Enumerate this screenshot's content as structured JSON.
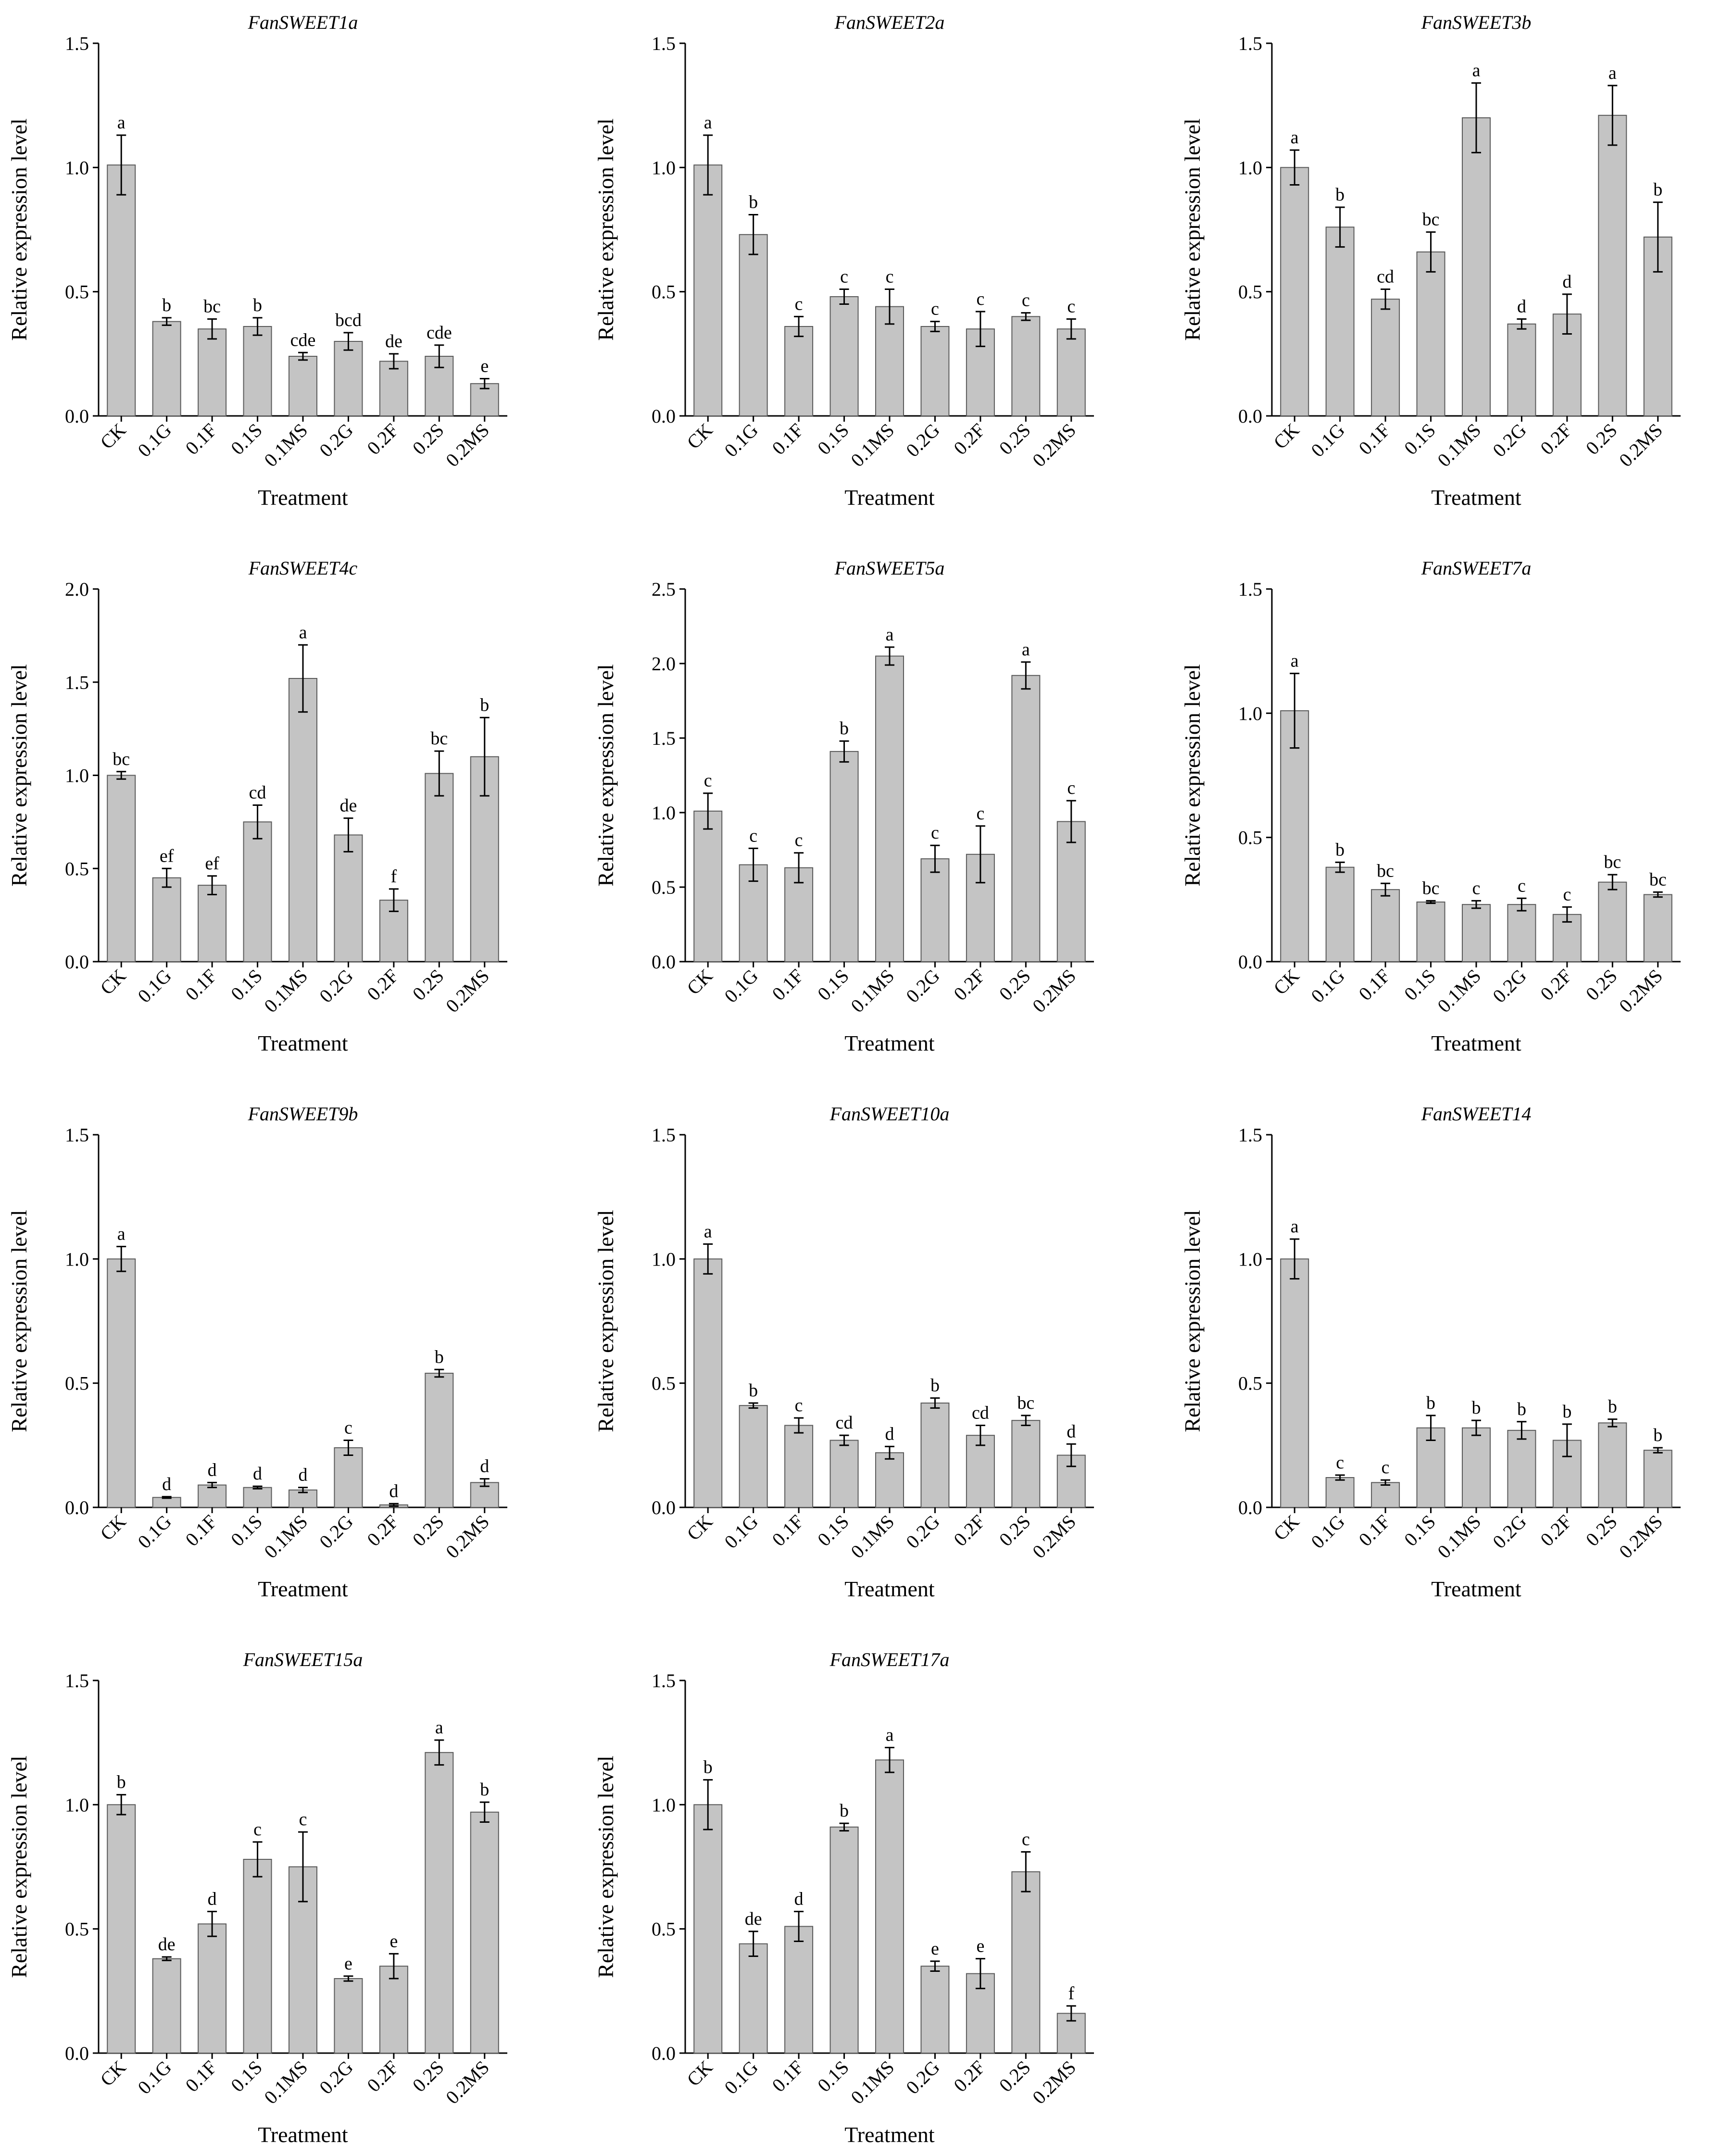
{
  "figure": {
    "ylabel": "Relative expression level",
    "xlabel": "Treatment",
    "categories": [
      "CK",
      "0.1G",
      "0.1F",
      "0.1S",
      "0.1MS",
      "0.2G",
      "0.2F",
      "0.2S",
      "0.2MS"
    ]
  },
  "chart_data": [
    {
      "type": "bar",
      "title": "FanSWEET1a",
      "ylim": [
        0,
        1.5
      ],
      "yticks": [
        "0.0",
        "0.5",
        "1.0",
        "1.5"
      ],
      "values": [
        1.01,
        0.38,
        0.35,
        0.36,
        0.24,
        0.3,
        0.22,
        0.24,
        0.13
      ],
      "errors": [
        0.12,
        0.015,
        0.04,
        0.035,
        0.015,
        0.035,
        0.03,
        0.045,
        0.02
      ],
      "labels": [
        "a",
        "b",
        "bc",
        "b",
        "cde",
        "bcd",
        "de",
        "cde",
        "e"
      ]
    },
    {
      "type": "bar",
      "title": "FanSWEET2a",
      "ylim": [
        0,
        1.5
      ],
      "yticks": [
        "0.0",
        "0.5",
        "1.0",
        "1.5"
      ],
      "values": [
        1.01,
        0.73,
        0.36,
        0.48,
        0.44,
        0.36,
        0.35,
        0.4,
        0.35
      ],
      "errors": [
        0.12,
        0.08,
        0.04,
        0.03,
        0.07,
        0.02,
        0.07,
        0.015,
        0.04
      ],
      "labels": [
        "a",
        "b",
        "c",
        "c",
        "c",
        "c",
        "c",
        "c",
        "c"
      ]
    },
    {
      "type": "bar",
      "title": "FanSWEET3b",
      "ylim": [
        0,
        1.5
      ],
      "yticks": [
        "0.0",
        "0.5",
        "1.0",
        "1.5"
      ],
      "values": [
        1.0,
        0.76,
        0.47,
        0.66,
        1.2,
        0.37,
        0.41,
        1.21,
        0.72
      ],
      "errors": [
        0.07,
        0.08,
        0.04,
        0.08,
        0.14,
        0.02,
        0.08,
        0.12,
        0.14
      ],
      "labels": [
        "a",
        "b",
        "cd",
        "bc",
        "a",
        "d",
        "d",
        "a",
        "b"
      ]
    },
    {
      "type": "bar",
      "title": "FanSWEET4c",
      "ylim": [
        0,
        2.0
      ],
      "yticks": [
        "0.0",
        "0.5",
        "1.0",
        "1.5",
        "2.0"
      ],
      "values": [
        1.0,
        0.45,
        0.41,
        0.75,
        1.52,
        0.68,
        0.33,
        1.01,
        1.1
      ],
      "errors": [
        0.02,
        0.05,
        0.05,
        0.09,
        0.18,
        0.09,
        0.06,
        0.12,
        0.21
      ],
      "labels": [
        "bc",
        "ef",
        "ef",
        "cd",
        "a",
        "de",
        "f",
        "bc",
        "b"
      ]
    },
    {
      "type": "bar",
      "title": "FanSWEET5a",
      "ylim": [
        0,
        2.5
      ],
      "yticks": [
        "0.0",
        "0.5",
        "1.0",
        "1.5",
        "2.0",
        "2.5"
      ],
      "values": [
        1.01,
        0.65,
        0.63,
        1.41,
        2.05,
        0.69,
        0.72,
        1.92,
        0.94
      ],
      "errors": [
        0.12,
        0.11,
        0.1,
        0.07,
        0.06,
        0.09,
        0.19,
        0.09,
        0.14
      ],
      "labels": [
        "c",
        "c",
        "c",
        "b",
        "a",
        "c",
        "c",
        "a",
        "c"
      ]
    },
    {
      "type": "bar",
      "title": "FanSWEET7a",
      "ylim": [
        0,
        1.5
      ],
      "yticks": [
        "0.0",
        "0.5",
        "1.0",
        "1.5"
      ],
      "values": [
        1.01,
        0.38,
        0.29,
        0.24,
        0.23,
        0.23,
        0.19,
        0.32,
        0.27
      ],
      "errors": [
        0.15,
        0.02,
        0.025,
        0.005,
        0.015,
        0.025,
        0.03,
        0.03,
        0.01
      ],
      "labels": [
        "a",
        "b",
        "bc",
        "bc",
        "c",
        "c",
        "c",
        "bc",
        "bc"
      ]
    },
    {
      "type": "bar",
      "title": "FanSWEET9b",
      "ylim": [
        0,
        1.5
      ],
      "yticks": [
        "0.0",
        "0.5",
        "1.0",
        "1.5"
      ],
      "values": [
        1.0,
        0.04,
        0.09,
        0.08,
        0.07,
        0.24,
        0.01,
        0.54,
        0.1
      ],
      "errors": [
        0.05,
        0.003,
        0.01,
        0.005,
        0.01,
        0.03,
        0.005,
        0.015,
        0.015
      ],
      "labels": [
        "a",
        "d",
        "d",
        "d",
        "d",
        "c",
        "d",
        "b",
        "d"
      ]
    },
    {
      "type": "bar",
      "title": "FanSWEET10a",
      "ylim": [
        0,
        1.5
      ],
      "yticks": [
        "0.0",
        "0.5",
        "1.0",
        "1.5"
      ],
      "values": [
        1.0,
        0.41,
        0.33,
        0.27,
        0.22,
        0.42,
        0.29,
        0.35,
        0.21
      ],
      "errors": [
        0.06,
        0.01,
        0.03,
        0.02,
        0.025,
        0.02,
        0.04,
        0.02,
        0.045
      ],
      "labels": [
        "a",
        "b",
        "c",
        "cd",
        "d",
        "b",
        "cd",
        "bc",
        "d"
      ]
    },
    {
      "type": "bar",
      "title": "FanSWEET14",
      "ylim": [
        0,
        1.5
      ],
      "yticks": [
        "0.0",
        "0.5",
        "1.0",
        "1.5"
      ],
      "values": [
        1.0,
        0.12,
        0.1,
        0.32,
        0.32,
        0.31,
        0.27,
        0.34,
        0.23
      ],
      "errors": [
        0.08,
        0.01,
        0.01,
        0.05,
        0.03,
        0.035,
        0.065,
        0.015,
        0.01
      ],
      "labels": [
        "a",
        "c",
        "c",
        "b",
        "b",
        "b",
        "b",
        "b",
        "b"
      ]
    },
    {
      "type": "bar",
      "title": "FanSWEET15a",
      "ylim": [
        0,
        1.5
      ],
      "yticks": [
        "0.0",
        "0.5",
        "1.0",
        "1.5"
      ],
      "values": [
        1.0,
        0.38,
        0.52,
        0.78,
        0.75,
        0.3,
        0.35,
        1.21,
        0.97
      ],
      "errors": [
        0.04,
        0.007,
        0.05,
        0.07,
        0.14,
        0.01,
        0.05,
        0.05,
        0.04
      ],
      "labels": [
        "b",
        "de",
        "d",
        "c",
        "c",
        "e",
        "e",
        "a",
        "b"
      ]
    },
    {
      "type": "bar",
      "title": "FanSWEET17a",
      "ylim": [
        0,
        1.5
      ],
      "yticks": [
        "0.0",
        "0.5",
        "1.0",
        "1.5"
      ],
      "values": [
        1.0,
        0.44,
        0.51,
        0.91,
        1.18,
        0.35,
        0.32,
        0.73,
        0.16
      ],
      "errors": [
        0.1,
        0.05,
        0.06,
        0.015,
        0.05,
        0.02,
        0.06,
        0.08,
        0.03
      ],
      "labels": [
        "b",
        "de",
        "d",
        "b",
        "a",
        "e",
        "e",
        "c",
        "f"
      ]
    }
  ]
}
